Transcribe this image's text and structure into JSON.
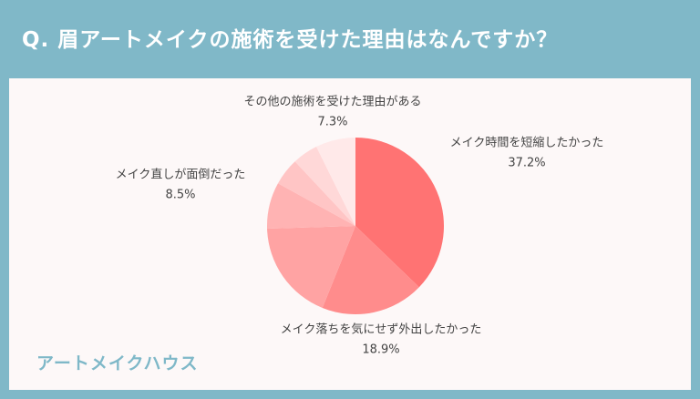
{
  "header": {
    "title": "Q. 眉アートメイクの施術を受けた理由はなんですか？"
  },
  "footer": {
    "brand": "アートメイクハウス"
  },
  "chart_data": {
    "type": "pie",
    "categories": [
      "メイク時間を短縮したかった",
      "メイク落ちを気にせず外出したかった",
      null,
      "メイク直しが面倒だった",
      null,
      null,
      "その他の施術を受けた理由がある"
    ],
    "values": [
      37.2,
      18.9,
      18.4,
      8.5,
      5.0,
      4.7,
      7.3
    ],
    "value_labels": [
      "37.2%",
      "18.9%",
      null,
      "8.5%",
      null,
      null,
      "7.3%"
    ],
    "colors": [
      "#ff7373",
      "#ff8c8c",
      "#ffa3a3",
      "#ffb3b3",
      "#ffc5c5",
      "#ffd8d8",
      "#ffe9e9"
    ]
  }
}
